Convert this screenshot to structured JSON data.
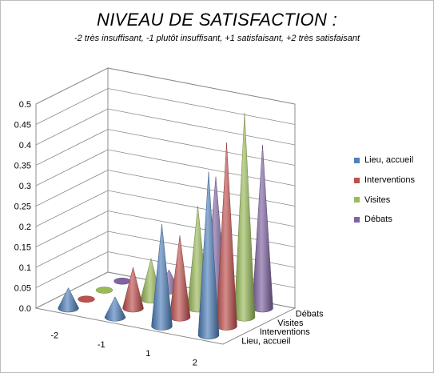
{
  "chart_data": {
    "type": "3d-cone",
    "title": "NIVEAU DE SATISFACTION :",
    "subtitle": "-2 très insuffisant, -1 plutôt insuffisant, +1 satisfaisant, +2 très satisfaisant",
    "categories": [
      "-2",
      "-1",
      "1",
      "2"
    ],
    "zlim": [
      0,
      0.5
    ],
    "ticks": [
      "0.0",
      "0.05",
      "0.1",
      "0.15",
      "0.2",
      "0.25",
      "0.3",
      "0.35",
      "0.4",
      "0.45",
      "0.5"
    ],
    "grid": true,
    "legend_position": "right",
    "series": [
      {
        "name": "Lieu, accueil",
        "color": "#4f81bd",
        "values": [
          0.05,
          0.05,
          0.25,
          0.4
        ]
      },
      {
        "name": "Interventions",
        "color": "#c0504d",
        "values": [
          0.0,
          0.1,
          0.2,
          0.45
        ]
      },
      {
        "name": "Visites",
        "color": "#9bbb59",
        "values": [
          0.0,
          0.1,
          0.25,
          0.5
        ]
      },
      {
        "name": "Débats",
        "color": "#8064a2",
        "values": [
          0.0,
          0.05,
          0.3,
          0.4
        ]
      }
    ]
  }
}
